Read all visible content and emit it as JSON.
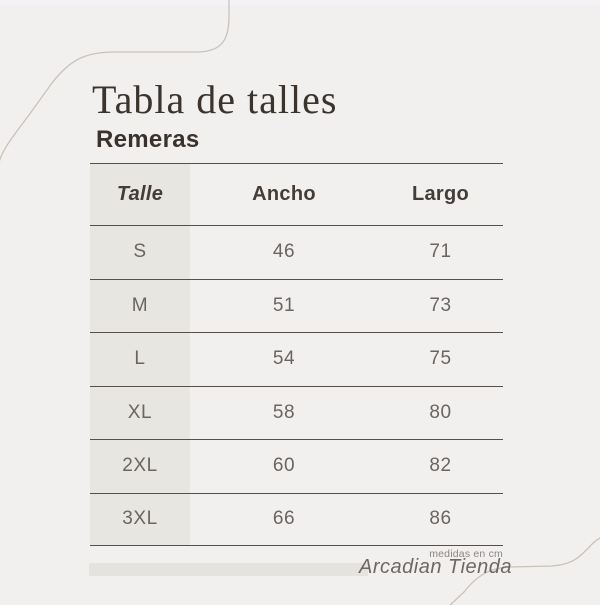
{
  "page": {
    "title": "Tabla de talles",
    "subtitle": "Remeras",
    "footnote": "medidas en cm",
    "brand": "Arcadian Tienda"
  },
  "table": {
    "columns": [
      "Talle",
      "Ancho",
      "Largo"
    ],
    "rows": [
      [
        "S",
        "46",
        "71"
      ],
      [
        "M",
        "51",
        "73"
      ],
      [
        "L",
        "54",
        "75"
      ],
      [
        "XL",
        "58",
        "80"
      ],
      [
        "2XL",
        "60",
        "82"
      ],
      [
        "3XL",
        "66",
        "86"
      ]
    ]
  },
  "colors": {
    "background": "#f1f0ee",
    "table_line": "#56504a",
    "talle_column_shade": "#e8e6e1",
    "heading_text": "#3a342d",
    "data_text": "#6b655f",
    "decorative_curve": "#cac2b8",
    "footer_bar": "#e5e3de"
  }
}
